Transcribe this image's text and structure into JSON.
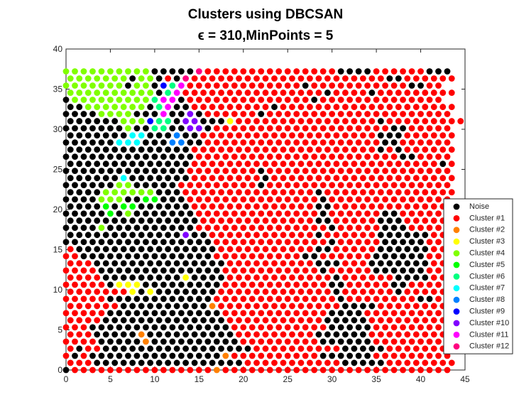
{
  "chart_data": {
    "type": "scatter",
    "title": "Clusters using DBCSAN",
    "subtitle": "ϵ = 310,MinPoints = 5",
    "xlim": [
      0,
      45
    ],
    "ylim": [
      0,
      40
    ],
    "xticks": [
      0,
      5,
      10,
      15,
      20,
      25,
      30,
      35,
      40,
      45
    ],
    "yticks": [
      0,
      5,
      10,
      15,
      20,
      25,
      30,
      35,
      40
    ],
    "legend": "right",
    "series": [
      {
        "name": "Noise",
        "color": "#000000"
      },
      {
        "name": "Cluster #1",
        "color": "#ff0000"
      },
      {
        "name": "Cluster #2",
        "color": "#ff8000"
      },
      {
        "name": "Cluster #3",
        "color": "#ffff00"
      },
      {
        "name": "Cluster #4",
        "color": "#80ff00"
      },
      {
        "name": "Cluster #5",
        "color": "#00ff00"
      },
      {
        "name": "Cluster #6",
        "color": "#00ff80"
      },
      {
        "name": "Cluster #7",
        "color": "#00ffff"
      },
      {
        "name": "Cluster #8",
        "color": "#0080ff"
      },
      {
        "name": "Cluster #9",
        "color": "#0000ff"
      },
      {
        "name": "Cluster #10",
        "color": "#8000ff"
      },
      {
        "name": "Cluster #11",
        "color": "#ff00ff"
      },
      {
        "name": "Cluster #12",
        "color": "#ff0080"
      }
    ],
    "dx": 1,
    "rows": [
      {
        "y": 0,
        "x0": 0,
        "clusters": "01111111111111111211111111111111111111111111"
      },
      {
        "y": 0.89,
        "x0": 0.5,
        "clusters": "11100000000000000000111111111110000011111111"
      },
      {
        "y": 1.77,
        "x0": 0,
        "clusters": "10100000000000000021111111111000000111111111"
      },
      {
        "y": 2.66,
        "x0": 0.5,
        "clusters": "10110000000000000000011111111110000011111111"
      },
      {
        "y": 3.54,
        "x0": 0,
        "clusters": "11110000020000000000111111111000000111111111"
      },
      {
        "y": 4.43,
        "x0": 0.5,
        "clusters": "11100000200000000001111111110000001111111111"
      },
      {
        "y": 5.32,
        "x0": 0,
        "clusters": "11100000000000000001111111111100000111111111"
      },
      {
        "y": 6.2,
        "x0": 0.5,
        "clusters": "11110000000000000011111111111000001111111111"
      },
      {
        "y": 7.09,
        "x0": 0,
        "clusters": "11111000000000000011111111111100001111111111"
      },
      {
        "y": 7.97,
        "x0": 0.5,
        "clusters": "11111100000000002111111111111110000111111111"
      },
      {
        "y": 8.86,
        "x0": 0,
        "clusters": "11111000000000000111111111111110111111110011"
      },
      {
        "y": 9.75,
        "x0": 0.5,
        "clusters": "11111113030000000111111111111101111110111111"
      },
      {
        "y": 10.63,
        "x0": 0,
        "clusters": "11111033300000000011111111111100111110011111"
      },
      {
        "y": 11.52,
        "x0": 0.5,
        "clusters": "11110000000003000011111111111101111110000111"
      },
      {
        "y": 12.4,
        "x0": 0,
        "clusters": "11110000000000000011111111111011111000000111"
      },
      {
        "y": 13.29,
        "x0": 0.5,
        "clusters": "11100000000000000011111111110001110000000111"
      },
      {
        "y": 14.18,
        "x0": 0,
        "clusters": "11000000000000000111111111100111111000000111"
      },
      {
        "y": 15.06,
        "x0": 0.5,
        "clusters": "10000000000000000111111111110011111000000111"
      },
      {
        "y": 15.95,
        "x0": 0,
        "clusters": "00000000000000000111111111111101111100000111"
      },
      {
        "y": 16.83,
        "x0": 0.5,
        "clusters": "0000000000000a00111111111111011111100000011"
      },
      {
        "y": 17.72,
        "x0": 0,
        "clusters": "00004000000000011111111111111101111100011111"
      },
      {
        "y": 18.61,
        "x0": 0.5,
        "clusters": "00000000000000011111111111110011111000111111"
      },
      {
        "y": 19.49,
        "x0": 0,
        "clusters": "00000504000000011111111111111011111100111111"
      },
      {
        "y": 20.38,
        "x0": 0.5,
        "clusters": "00005055000000111111111111110011111111111111"
      },
      {
        "y": 21.26,
        "x0": 0,
        "clusters": "00004440055000111111111111111011111111111111"
      },
      {
        "y": 22.15,
        "x0": 0.5,
        "clusters": "00004444440001111111111111110111111111111111"
      },
      {
        "y": 23.04,
        "x0": 0,
        "clusters": "00000044000001111111110111111111111111111111"
      },
      {
        "y": 23.92,
        "x0": 0.5,
        "clusters": "00000070000000111111110111111111111111111111"
      },
      {
        "y": 24.81,
        "x0": 0,
        "clusters": "00000000000000111111110111111111111111111111"
      },
      {
        "y": 25.69,
        "x0": 0.5,
        "clusters": "00000000000000111111111111111111111111111101"
      },
      {
        "y": 26.58,
        "x0": 0,
        "clusters": "00000000000000011111111111111111111111001111"
      },
      {
        "y": 27.47,
        "x0": 0.5,
        "clusters": "00000000000000111111111111111111111010111111"
      },
      {
        "y": 28.35,
        "x0": 0,
        "clusters": "00000077700088001111111111111111111100111111"
      },
      {
        "y": 29.24,
        "x0": 0.5,
        "clusters": "00000007700080011111111111111111111000111111"
      },
      {
        "y": 30.12,
        "x0": 0,
        "clusters": "00000004006600aa0111111111111111111110011111"
      },
      {
        "y": 31.01,
        "x0": 0.5,
        "clusters": "0000004449660aa000311111111111111110111111111"
      },
      {
        "y": 31.9,
        "x0": 0,
        "clusters": "00004444000b00a01111110111111111111111111111"
      },
      {
        "y": 32.78,
        "x0": 0.5,
        "clusters": "00444444406b00111111111011111111111111111111"
      },
      {
        "y": 33.67,
        "x0": 0,
        "clusters": "04444444446bb011111111111111011111111111111"
      },
      {
        "y": 34.55,
        "x0": 0.5,
        "clusters": "444444444406b1111111111111111011110111111111"
      },
      {
        "y": 35.44,
        "x0": 0,
        "clusters": "4444444044096b11111111111110111111111110011"
      },
      {
        "y": 36.33,
        "x0": 0.5,
        "clusters": "4444444044010c111111111111111111111100111111"
      },
      {
        "y": 37.21,
        "x0": 0,
        "clusters": "444444444400000c1111111111111110000111111000"
      }
    ]
  }
}
